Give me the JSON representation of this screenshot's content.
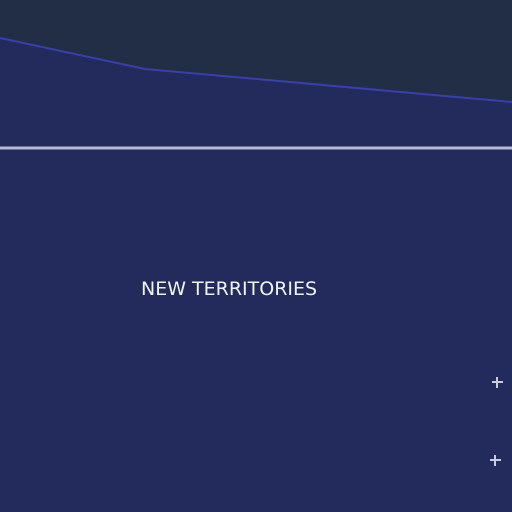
{
  "map": {
    "colors": {
      "background": "#212e45",
      "land": "#222b5b",
      "coastline": "#3a3fb0",
      "boundary": "#b8bacd",
      "label": "#f2f2f0",
      "marker": "#c9cbe0"
    },
    "labels": {
      "region": "NEW TERRITORIES"
    },
    "markers": [
      {
        "icon": "plus-marker-icon"
      },
      {
        "icon": "plus-marker-icon"
      }
    ]
  }
}
